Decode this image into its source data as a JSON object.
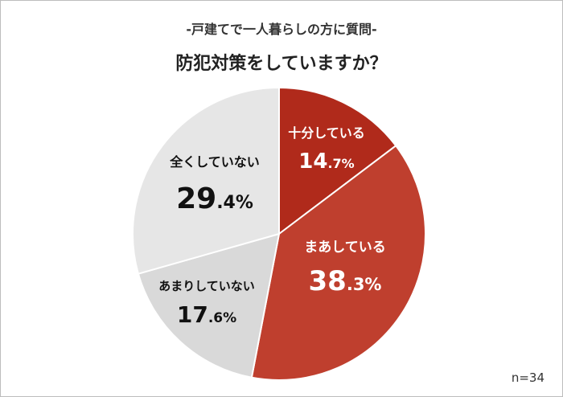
{
  "subtitle": "-戸建てで一人暮らしの方に質問-",
  "title": "防犯対策をしていますか？",
  "sample_size": "n=34",
  "chart_data": {
    "type": "pie",
    "start_angle_deg": 0,
    "direction": "clockwise",
    "slices": [
      {
        "label": "十分している",
        "value": 14.7,
        "color": "#b02a1b",
        "text_color": "#ffffff"
      },
      {
        "label": "まあしている",
        "value": 38.3,
        "color": "#bf3f2e",
        "text_color": "#ffffff"
      },
      {
        "label": "あまりしていない",
        "value": 17.6,
        "color": "#d9d9d9",
        "text_color": "#111111"
      },
      {
        "label": "全くしていない",
        "value": 29.4,
        "color": "#e6e6e6",
        "text_color": "#111111"
      }
    ]
  }
}
